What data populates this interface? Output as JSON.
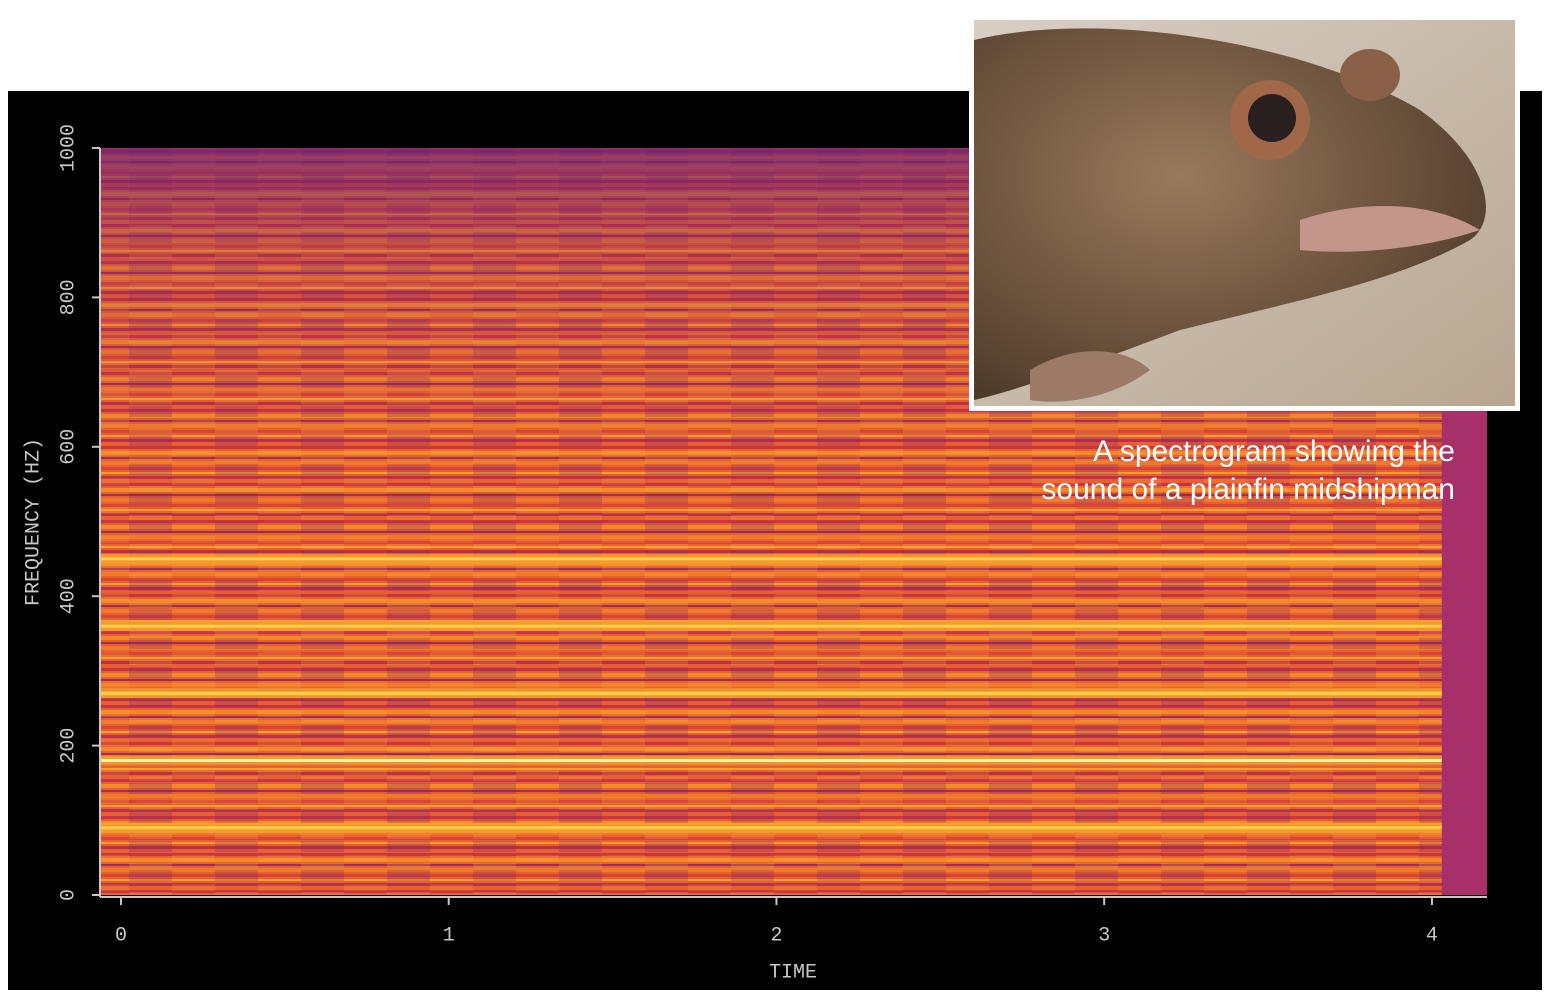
{
  "chart_data": {
    "type": "spectrogram",
    "xlabel": "TIME",
    "ylabel": "FREQUENCY (HZ)",
    "xlim": [
      -0.064,
      4.168
    ],
    "ylim": [
      0,
      1000
    ],
    "xticks": [
      0,
      1,
      2,
      3,
      4
    ],
    "yticks": [
      0,
      200,
      400,
      600,
      800,
      1000
    ],
    "harmonics": [
      90,
      180,
      270,
      360,
      450
    ],
    "harmonic_end": 4.03,
    "annotation": [
      "A spectrogram showing the",
      "sound of a plainfin midshipman"
    ]
  }
}
